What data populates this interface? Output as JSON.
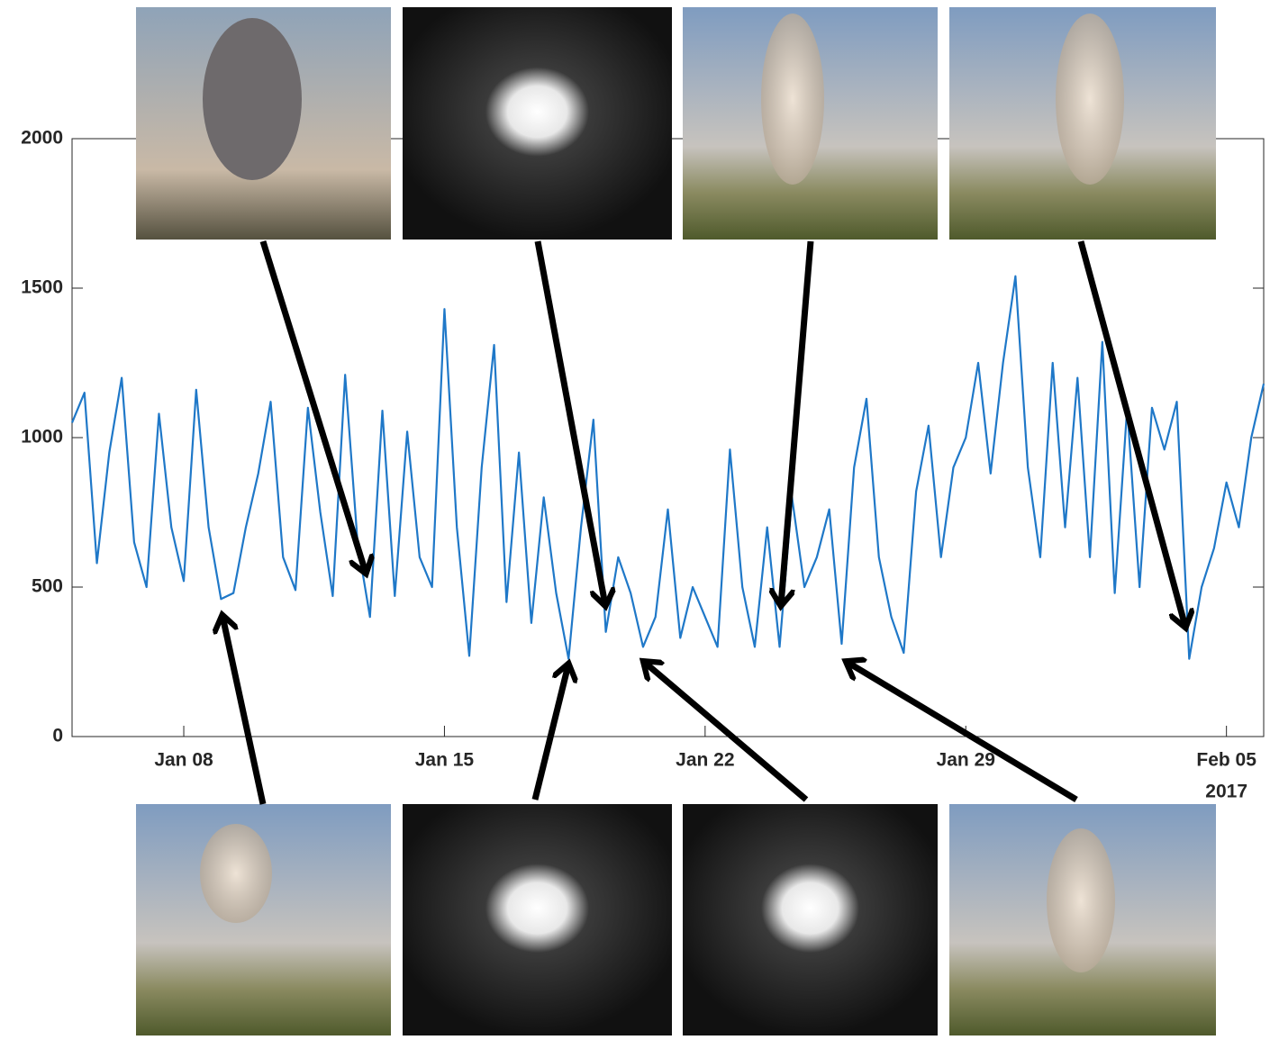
{
  "chart_data": {
    "type": "line",
    "x": [
      "2017-01-05T00:00",
      "2017-01-05T08:00",
      "2017-01-05T16:00",
      "2017-01-06T00:00",
      "2017-01-06T08:00",
      "2017-01-06T16:00",
      "2017-01-07T00:00",
      "2017-01-07T08:00",
      "2017-01-07T16:00",
      "2017-01-08T00:00",
      "2017-01-08T08:00",
      "2017-01-08T16:00",
      "2017-01-09T00:00",
      "2017-01-09T08:00",
      "2017-01-09T16:00",
      "2017-01-10T00:00",
      "2017-01-10T08:00",
      "2017-01-10T16:00",
      "2017-01-11T00:00",
      "2017-01-11T08:00",
      "2017-01-11T16:00",
      "2017-01-12T00:00",
      "2017-01-12T08:00",
      "2017-01-12T16:00",
      "2017-01-13T00:00",
      "2017-01-13T08:00",
      "2017-01-13T16:00",
      "2017-01-14T00:00",
      "2017-01-14T08:00",
      "2017-01-14T16:00",
      "2017-01-15T00:00",
      "2017-01-15T08:00",
      "2017-01-15T16:00",
      "2017-01-16T00:00",
      "2017-01-16T08:00",
      "2017-01-16T16:00",
      "2017-01-17T00:00",
      "2017-01-17T08:00",
      "2017-01-17T16:00",
      "2017-01-18T00:00",
      "2017-01-18T08:00",
      "2017-01-18T16:00",
      "2017-01-19T00:00",
      "2017-01-19T08:00",
      "2017-01-19T16:00",
      "2017-01-20T00:00",
      "2017-01-20T08:00",
      "2017-01-20T16:00",
      "2017-01-21T00:00",
      "2017-01-21T08:00",
      "2017-01-21T16:00",
      "2017-01-22T00:00",
      "2017-01-22T08:00",
      "2017-01-22T16:00",
      "2017-01-23T00:00",
      "2017-01-23T08:00",
      "2017-01-23T16:00",
      "2017-01-24T00:00",
      "2017-01-24T08:00",
      "2017-01-24T16:00",
      "2017-01-25T00:00",
      "2017-01-25T08:00",
      "2017-01-25T16:00",
      "2017-01-26T00:00",
      "2017-01-26T08:00",
      "2017-01-26T16:00",
      "2017-01-27T00:00",
      "2017-01-27T08:00",
      "2017-01-27T16:00",
      "2017-01-28T00:00",
      "2017-01-28T08:00",
      "2017-01-28T16:00",
      "2017-01-29T00:00",
      "2017-01-29T08:00",
      "2017-01-29T16:00",
      "2017-01-30T00:00",
      "2017-01-30T08:00",
      "2017-01-30T16:00",
      "2017-01-31T00:00",
      "2017-01-31T08:00",
      "2017-01-31T16:00",
      "2017-02-01T00:00",
      "2017-02-01T08:00",
      "2017-02-01T16:00",
      "2017-02-02T00:00",
      "2017-02-02T08:00",
      "2017-02-02T16:00",
      "2017-02-03T00:00",
      "2017-02-03T08:00",
      "2017-02-03T16:00",
      "2017-02-04T00:00",
      "2017-02-04T08:00",
      "2017-02-04T16:00",
      "2017-02-05T00:00",
      "2017-02-05T08:00",
      "2017-02-05T16:00",
      "2017-02-06T00:00"
    ],
    "values": [
      1050,
      1150,
      580,
      950,
      1200,
      650,
      500,
      1080,
      700,
      520,
      1160,
      700,
      460,
      480,
      700,
      880,
      1120,
      600,
      490,
      1100,
      750,
      470,
      1210,
      650,
      400,
      1090,
      470,
      1020,
      600,
      500,
      1430,
      700,
      270,
      900,
      1310,
      450,
      950,
      380,
      800,
      480,
      260,
      700,
      1060,
      350,
      600,
      480,
      300,
      400,
      760,
      330,
      500,
      400,
      300,
      960,
      500,
      300,
      700,
      300,
      800,
      500,
      600,
      760,
      310,
      900,
      1130,
      600,
      400,
      280,
      820,
      1040,
      600,
      900,
      1000,
      1250,
      880,
      1250,
      1540,
      900,
      600,
      1250,
      700,
      1200,
      600,
      1320,
      480,
      1100,
      500,
      1100,
      960,
      1120,
      260,
      500,
      630,
      850,
      700,
      1000,
      1180
    ],
    "color": "#1f78c8",
    "xlim": [
      "2017-01-05T00:00",
      "2017-02-06T00:00"
    ],
    "xticks": [
      {
        "value": "2017-01-08T00:00",
        "label": "Jan 08"
      },
      {
        "value": "2017-01-15T00:00",
        "label": "Jan 15"
      },
      {
        "value": "2017-01-22T00:00",
        "label": "Jan 22"
      },
      {
        "value": "2017-01-29T00:00",
        "label": "Jan 29"
      },
      {
        "value": "2017-02-05T00:00",
        "label": "Feb 05"
      }
    ],
    "x_year_label": "2017",
    "ylim": [
      0,
      2000
    ],
    "yticks": [
      0,
      500,
      1000,
      1500,
      2000
    ],
    "grid": false
  }
}
